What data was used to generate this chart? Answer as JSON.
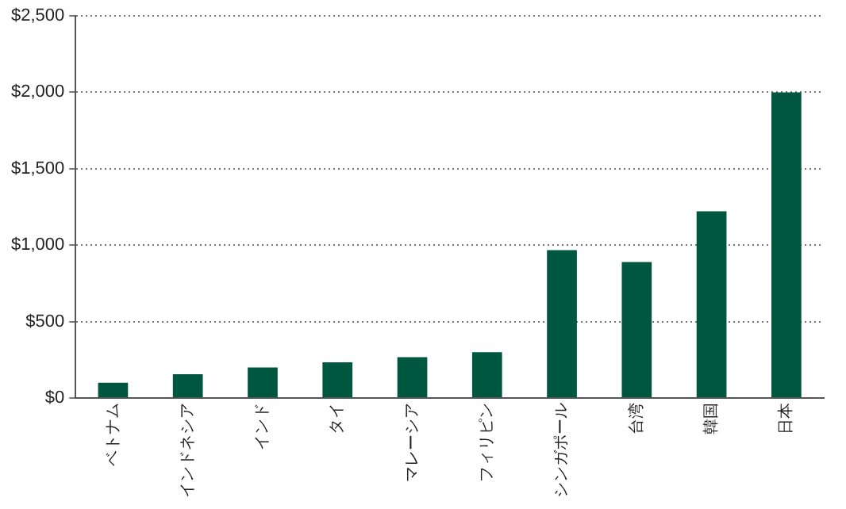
{
  "chart_data": {
    "type": "bar",
    "categories": [
      "ベトナム",
      "インドネシア",
      "インド",
      "タイ",
      "マレーシア",
      "フィリピン",
      "シンガポール",
      "台湾",
      "韓国",
      "日本"
    ],
    "values": [
      100,
      155,
      200,
      233,
      267,
      300,
      967,
      889,
      1222,
      2000
    ],
    "color": "#00573f",
    "ylim": [
      0,
      2500
    ],
    "yticks": [
      {
        "value": 0,
        "label": "$0"
      },
      {
        "value": 500,
        "label": "$500"
      },
      {
        "value": 1000,
        "label": "$1,000"
      },
      {
        "value": 1500,
        "label": "$1,500"
      },
      {
        "value": 2000,
        "label": "$2,000"
      },
      {
        "value": 2500,
        "label": "$2,500"
      }
    ],
    "grid": "y",
    "legend": false
  }
}
